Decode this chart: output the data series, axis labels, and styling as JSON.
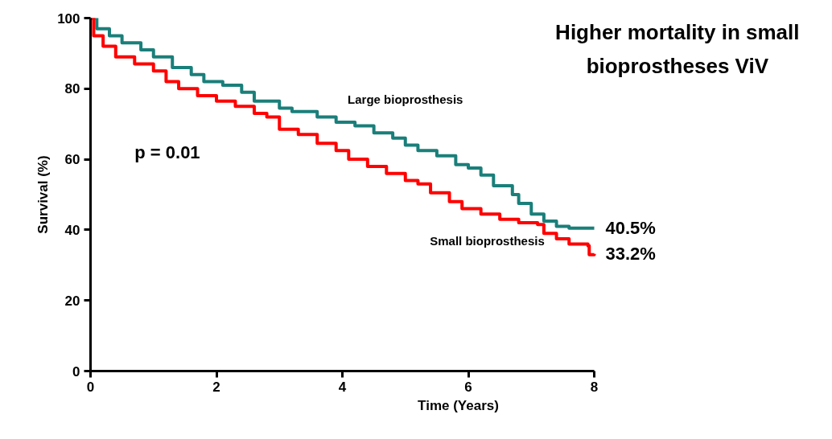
{
  "chart_data": {
    "type": "step",
    "title": "Higher mortality in small bioprostheses ViV",
    "xlabel": "Time (Years)",
    "ylabel": "Survival (%)",
    "xlim": [
      0,
      8
    ],
    "ylim": [
      0,
      100
    ],
    "xticks": [
      0,
      2,
      4,
      6,
      8
    ],
    "yticks": [
      0,
      20,
      40,
      60,
      80,
      100
    ],
    "grid": false,
    "marker": "none",
    "line_style": "solid",
    "series": [
      {
        "name": "Large bioprosthesis",
        "color": "#1a7f7a",
        "x": [
          0,
          0.1,
          0.3,
          0.5,
          0.8,
          1.0,
          1.3,
          1.6,
          1.8,
          2.1,
          2.4,
          2.6,
          3.0,
          3.2,
          3.6,
          3.9,
          4.2,
          4.5,
          4.8,
          5.0,
          5.2,
          5.5,
          5.8,
          6.0,
          6.2,
          6.4,
          6.7,
          6.8,
          7.0,
          7.2,
          7.4,
          7.6,
          8.0
        ],
        "values": [
          100,
          97,
          95,
          93,
          91,
          89,
          86,
          84,
          82,
          81,
          79,
          76.5,
          74.5,
          73.5,
          72,
          70.5,
          69.5,
          67.5,
          66,
          64,
          62.5,
          61,
          58.5,
          57.5,
          55.5,
          52.5,
          50,
          47.5,
          44.5,
          42.5,
          41,
          40.5,
          40.5
        ]
      },
      {
        "name": "Small bioprosthesis",
        "color": "#ff0000",
        "x": [
          0,
          0.05,
          0.2,
          0.4,
          0.7,
          1.0,
          1.2,
          1.4,
          1.7,
          2.0,
          2.3,
          2.6,
          2.8,
          3.0,
          3.3,
          3.6,
          3.9,
          4.1,
          4.4,
          4.7,
          5.0,
          5.2,
          5.4,
          5.7,
          5.9,
          6.2,
          6.5,
          6.8,
          7.1,
          7.2,
          7.4,
          7.6,
          7.9,
          7.92,
          8.0
        ],
        "values": [
          100,
          95,
          92,
          89,
          87,
          85,
          82,
          80,
          78,
          76.5,
          75,
          73,
          72,
          68.5,
          67,
          64.5,
          62.5,
          60,
          58,
          56,
          54,
          53,
          50.5,
          48,
          46,
          44.5,
          43,
          42,
          41.5,
          39,
          37.5,
          36,
          35.5,
          33,
          33.2
        ]
      }
    ],
    "annotations": [
      "p = 0.01",
      {
        "text": "40.5%",
        "x": 8,
        "y": 40.5
      },
      {
        "text": "33.2%",
        "x": 8,
        "y": 33.2
      }
    ]
  }
}
